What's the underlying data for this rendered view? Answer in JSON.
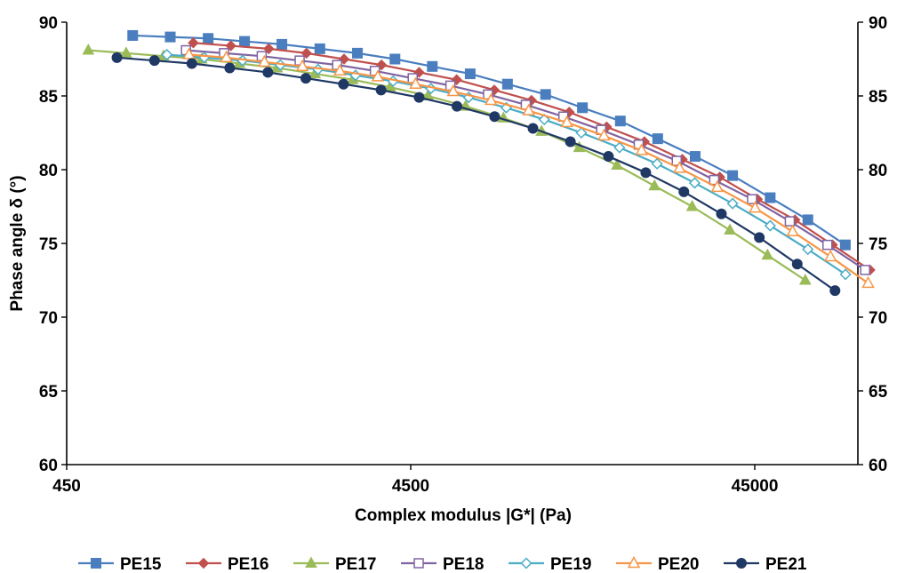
{
  "chart_data": {
    "type": "line",
    "title": "",
    "xlabel": "Complex modulus |G*| (Pa)",
    "ylabel": "Phase angle δ (°)",
    "x_scale": "log",
    "xlim": [
      450,
      100000
    ],
    "ylim": [
      60,
      90
    ],
    "x_ticks": [
      450,
      4500,
      45000
    ],
    "x_tick_labels": [
      "450",
      "4500",
      "45000"
    ],
    "y_ticks": [
      60,
      65,
      70,
      75,
      80,
      85,
      90
    ],
    "y_tick_labels": [
      "60",
      "65",
      "70",
      "75",
      "80",
      "85",
      "90"
    ],
    "secondary_y_axis": true,
    "grid": false,
    "legend_position": "bottom",
    "series": [
      {
        "name": "PE15",
        "color": "#4a7ebf",
        "marker": "square",
        "x": [
          700,
          900,
          1160,
          1480,
          1900,
          2450,
          3150,
          4050,
          5200,
          6700,
          8600,
          11100,
          14200,
          18300,
          23500,
          30200,
          38800,
          49900,
          64200,
          82500
        ],
        "y": [
          89.1,
          89.0,
          88.9,
          88.7,
          88.5,
          88.2,
          87.9,
          87.5,
          87.0,
          86.5,
          85.8,
          85.1,
          84.2,
          83.3,
          82.1,
          80.9,
          79.6,
          78.1,
          76.6,
          74.9
        ]
      },
      {
        "name": "PE16",
        "color": "#c0504d",
        "marker": "diamond",
        "x": [
          1050,
          1350,
          1740,
          2240,
          2880,
          3700,
          4760,
          6120,
          7870,
          10100,
          13000,
          16700,
          21500,
          27700,
          35600,
          45800,
          58900,
          75700,
          97300
        ],
        "y": [
          88.6,
          88.4,
          88.2,
          87.9,
          87.5,
          87.1,
          86.6,
          86.1,
          85.4,
          84.7,
          83.9,
          82.9,
          81.9,
          80.7,
          79.5,
          78.0,
          76.6,
          74.9,
          73.2
        ]
      },
      {
        "name": "PE17",
        "color": "#9bbb59",
        "marker": "triangle",
        "x": [
          520,
          670,
          860,
          1110,
          1430,
          1840,
          2370,
          3050,
          3920,
          5050,
          6500,
          8370,
          10800,
          13900,
          17900,
          23000,
          29600,
          38100,
          49000,
          63100
        ],
        "y": [
          88.1,
          87.9,
          87.7,
          87.5,
          87.2,
          86.9,
          86.5,
          86.1,
          85.6,
          85.0,
          84.3,
          83.5,
          82.6,
          81.5,
          80.3,
          78.9,
          77.5,
          75.9,
          74.2,
          72.5
        ]
      },
      {
        "name": "PE18",
        "color": "#8064a2",
        "marker": "square-open",
        "x": [
          1000,
          1290,
          1660,
          2140,
          2750,
          3540,
          4560,
          5870,
          7550,
          9720,
          12500,
          16100,
          20700,
          26700,
          34300,
          44200,
          56900,
          73200,
          94200
        ],
        "y": [
          88.1,
          87.9,
          87.7,
          87.4,
          87.1,
          86.7,
          86.2,
          85.7,
          85.1,
          84.4,
          83.6,
          82.7,
          81.7,
          80.6,
          79.3,
          78.0,
          76.5,
          74.9,
          73.2
        ]
      },
      {
        "name": "PE19",
        "color": "#4bacc6",
        "marker": "diamond-open",
        "x": [
          880,
          1130,
          1460,
          1880,
          2420,
          3110,
          4000,
          5150,
          6630,
          8530,
          11000,
          14100,
          18200,
          23400,
          30100,
          38800,
          49900,
          64200,
          82600
        ],
        "y": [
          87.8,
          87.6,
          87.4,
          87.1,
          86.8,
          86.4,
          86.0,
          85.5,
          84.9,
          84.2,
          83.4,
          82.5,
          81.5,
          80.4,
          79.1,
          77.7,
          76.2,
          74.6,
          72.9
        ]
      },
      {
        "name": "PE20",
        "color": "#f79646",
        "marker": "triangle-open",
        "x": [
          1020,
          1310,
          1690,
          2180,
          2800,
          3610,
          4650,
          5980,
          7700,
          9910,
          12800,
          16400,
          21100,
          27200,
          35000,
          45100,
          58000,
          74700,
          96100
        ],
        "y": [
          87.8,
          87.6,
          87.3,
          87.0,
          86.7,
          86.3,
          85.8,
          85.3,
          84.7,
          84.0,
          83.2,
          82.3,
          81.3,
          80.1,
          78.8,
          77.4,
          75.8,
          74.1,
          72.3
        ]
      },
      {
        "name": "PE21",
        "color": "#1f3864",
        "marker": "circle",
        "x": [
          630,
          810,
          1040,
          1340,
          1730,
          2230,
          2870,
          3690,
          4760,
          6130,
          7890,
          10200,
          13100,
          16900,
          21700,
          28000,
          36000,
          46400,
          59800,
          77000
        ],
        "y": [
          87.6,
          87.4,
          87.2,
          86.9,
          86.6,
          86.2,
          85.8,
          85.4,
          84.9,
          84.3,
          83.6,
          82.8,
          81.9,
          80.9,
          79.8,
          78.5,
          77.0,
          75.4,
          73.6,
          71.8
        ]
      }
    ]
  }
}
